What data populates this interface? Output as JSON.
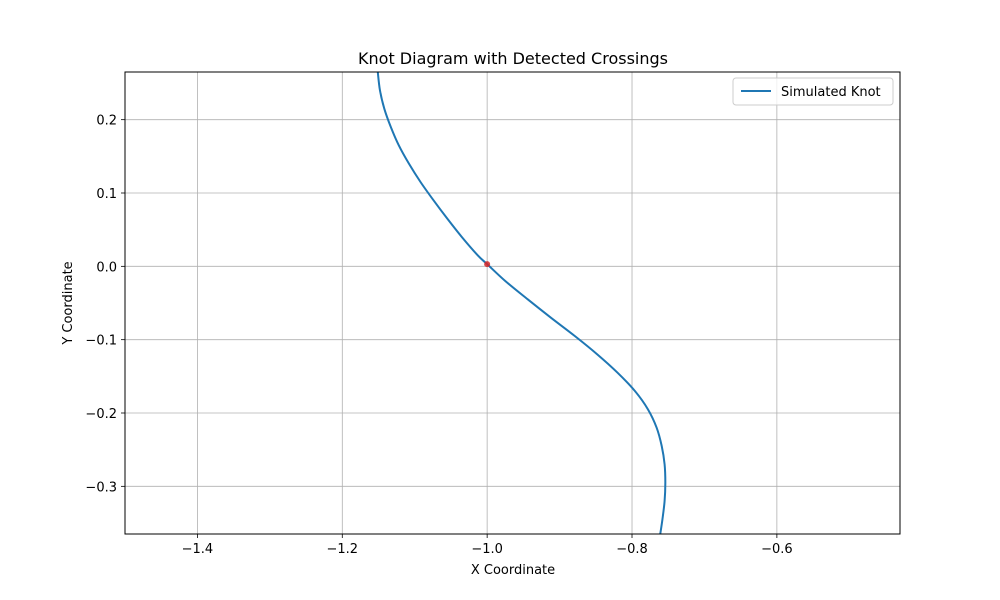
{
  "chart_data": {
    "type": "line",
    "title": "Knot Diagram with Detected Crossings",
    "xlabel": "X Coordinate",
    "ylabel": "Y Coordinate",
    "xlim": [
      -1.5,
      -0.43
    ],
    "ylim": [
      -0.365,
      0.265
    ],
    "xticks": [
      -1.4,
      -1.2,
      -1.0,
      -0.8,
      -0.6
    ],
    "xtick_labels": [
      "−1.4",
      "−1.2",
      "−1.0",
      "−0.8",
      "−0.6"
    ],
    "yticks": [
      0.2,
      0.1,
      0.0,
      -0.1,
      -0.2,
      -0.3
    ],
    "ytick_labels": [
      "0.2",
      "0.1",
      "0.0",
      "−0.1",
      "−0.2",
      "−0.3"
    ],
    "grid": true,
    "legend_position": "top-right",
    "series": [
      {
        "name": "Simulated Knot",
        "color": "#1f77b4",
        "points": [
          [
            -1.151,
            0.265
          ],
          [
            -1.148,
            0.24
          ],
          [
            -1.142,
            0.215
          ],
          [
            -1.133,
            0.19
          ],
          [
            -1.122,
            0.165
          ],
          [
            -1.108,
            0.14
          ],
          [
            -1.092,
            0.115
          ],
          [
            -1.074,
            0.09
          ],
          [
            -1.055,
            0.065
          ],
          [
            -1.035,
            0.04
          ],
          [
            -1.013,
            0.015
          ],
          [
            -1.0,
            0.003
          ],
          [
            -0.975,
            -0.02
          ],
          [
            -0.944,
            -0.045
          ],
          [
            -0.912,
            -0.07
          ],
          [
            -0.879,
            -0.095
          ],
          [
            -0.848,
            -0.12
          ],
          [
            -0.82,
            -0.145
          ],
          [
            -0.796,
            -0.17
          ],
          [
            -0.778,
            -0.195
          ],
          [
            -0.766,
            -0.22
          ],
          [
            -0.759,
            -0.245
          ],
          [
            -0.755,
            -0.27
          ],
          [
            -0.754,
            -0.295
          ],
          [
            -0.755,
            -0.32
          ],
          [
            -0.758,
            -0.345
          ],
          [
            -0.761,
            -0.365
          ]
        ]
      }
    ],
    "crossings": [
      {
        "x": -1.0,
        "y": 0.003,
        "color": "#d62728"
      }
    ]
  }
}
